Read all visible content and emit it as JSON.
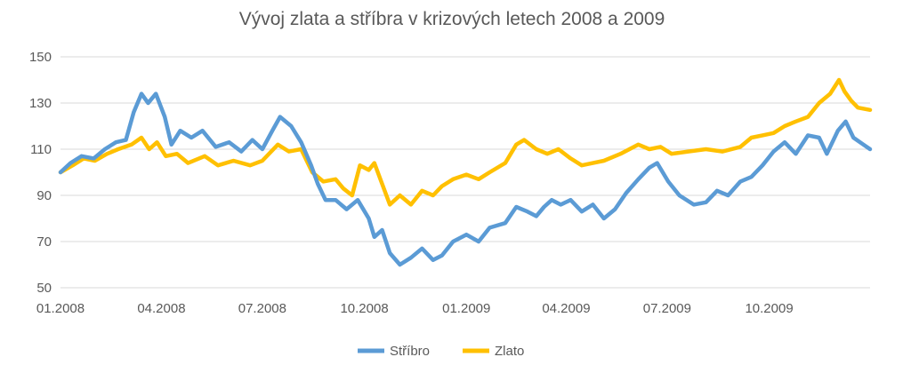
{
  "chart_data": {
    "type": "line",
    "title": "Vývoj zlata a stříbra v krizových letech 2008 a 2009",
    "xlabel": "",
    "ylabel": "",
    "ylim": [
      50,
      150
    ],
    "yticks": [
      50,
      70,
      90,
      110,
      130,
      150
    ],
    "x_range": [
      "2008-01-01",
      "2009-12-31"
    ],
    "xticks": [
      {
        "date": "2008-01-01",
        "label": "01.2008"
      },
      {
        "date": "2008-04-01",
        "label": "04.2008"
      },
      {
        "date": "2008-07-01",
        "label": "07.2008"
      },
      {
        "date": "2008-10-01",
        "label": "10.2008"
      },
      {
        "date": "2009-01-01",
        "label": "01.2009"
      },
      {
        "date": "2009-04-01",
        "label": "04.2009"
      },
      {
        "date": "2009-07-01",
        "label": "07.2009"
      },
      {
        "date": "2009-10-01",
        "label": "10.2009"
      }
    ],
    "grid": true,
    "legend_position": "bottom",
    "series": [
      {
        "name": "Stříbro",
        "color": "#5b9bd5",
        "points": [
          [
            "2008-01-01",
            100
          ],
          [
            "2008-01-10",
            104
          ],
          [
            "2008-01-20",
            107
          ],
          [
            "2008-01-31",
            106
          ],
          [
            "2008-02-10",
            110
          ],
          [
            "2008-02-20",
            113
          ],
          [
            "2008-02-29",
            114
          ],
          [
            "2008-03-07",
            126
          ],
          [
            "2008-03-14",
            134
          ],
          [
            "2008-03-20",
            130
          ],
          [
            "2008-03-27",
            134
          ],
          [
            "2008-04-04",
            124
          ],
          [
            "2008-04-10",
            112
          ],
          [
            "2008-04-18",
            118
          ],
          [
            "2008-04-28",
            115
          ],
          [
            "2008-05-08",
            118
          ],
          [
            "2008-05-20",
            111
          ],
          [
            "2008-06-01",
            113
          ],
          [
            "2008-06-12",
            109
          ],
          [
            "2008-06-22",
            114
          ],
          [
            "2008-07-01",
            110
          ],
          [
            "2008-07-10",
            118
          ],
          [
            "2008-07-17",
            124
          ],
          [
            "2008-07-27",
            120
          ],
          [
            "2008-08-05",
            113
          ],
          [
            "2008-08-14",
            103
          ],
          [
            "2008-08-20",
            95
          ],
          [
            "2008-08-27",
            88
          ],
          [
            "2008-09-05",
            88
          ],
          [
            "2008-09-15",
            84
          ],
          [
            "2008-09-25",
            88
          ],
          [
            "2008-10-05",
            80
          ],
          [
            "2008-10-10",
            72
          ],
          [
            "2008-10-17",
            75
          ],
          [
            "2008-10-24",
            65
          ],
          [
            "2008-11-02",
            60
          ],
          [
            "2008-11-12",
            63
          ],
          [
            "2008-11-22",
            67
          ],
          [
            "2008-12-02",
            62
          ],
          [
            "2008-12-10",
            64
          ],
          [
            "2008-12-20",
            70
          ],
          [
            "2009-01-01",
            73
          ],
          [
            "2009-01-12",
            70
          ],
          [
            "2009-01-22",
            76
          ],
          [
            "2009-02-05",
            78
          ],
          [
            "2009-02-15",
            85
          ],
          [
            "2009-02-25",
            83
          ],
          [
            "2009-03-05",
            81
          ],
          [
            "2009-03-12",
            85
          ],
          [
            "2009-03-19",
            88
          ],
          [
            "2009-03-27",
            86
          ],
          [
            "2009-04-05",
            88
          ],
          [
            "2009-04-15",
            83
          ],
          [
            "2009-04-25",
            86
          ],
          [
            "2009-05-05",
            80
          ],
          [
            "2009-05-15",
            84
          ],
          [
            "2009-05-25",
            91
          ],
          [
            "2009-06-05",
            97
          ],
          [
            "2009-06-15",
            102
          ],
          [
            "2009-06-22",
            104
          ],
          [
            "2009-07-02",
            96
          ],
          [
            "2009-07-12",
            90
          ],
          [
            "2009-07-25",
            86
          ],
          [
            "2009-08-05",
            87
          ],
          [
            "2009-08-15",
            92
          ],
          [
            "2009-08-25",
            90
          ],
          [
            "2009-09-05",
            96
          ],
          [
            "2009-09-15",
            98
          ],
          [
            "2009-09-25",
            103
          ],
          [
            "2009-10-05",
            109
          ],
          [
            "2009-10-15",
            113
          ],
          [
            "2009-10-25",
            108
          ],
          [
            "2009-11-05",
            116
          ],
          [
            "2009-11-15",
            115
          ],
          [
            "2009-11-22",
            108
          ],
          [
            "2009-12-02",
            118
          ],
          [
            "2009-12-09",
            122
          ],
          [
            "2009-12-16",
            115
          ],
          [
            "2009-12-25",
            112
          ],
          [
            "2009-12-31",
            110
          ]
        ]
      },
      {
        "name": "Zlato",
        "color": "#ffc000",
        "points": [
          [
            "2008-01-01",
            100
          ],
          [
            "2008-01-12",
            103
          ],
          [
            "2008-01-22",
            106
          ],
          [
            "2008-02-01",
            105
          ],
          [
            "2008-02-12",
            108
          ],
          [
            "2008-02-22",
            110
          ],
          [
            "2008-03-05",
            112
          ],
          [
            "2008-03-14",
            115
          ],
          [
            "2008-03-21",
            110
          ],
          [
            "2008-03-28",
            113
          ],
          [
            "2008-04-05",
            107
          ],
          [
            "2008-04-15",
            108
          ],
          [
            "2008-04-25",
            104
          ],
          [
            "2008-05-10",
            107
          ],
          [
            "2008-05-22",
            103
          ],
          [
            "2008-06-05",
            105
          ],
          [
            "2008-06-20",
            103
          ],
          [
            "2008-07-01",
            105
          ],
          [
            "2008-07-15",
            112
          ],
          [
            "2008-07-25",
            109
          ],
          [
            "2008-08-05",
            110
          ],
          [
            "2008-08-15",
            100
          ],
          [
            "2008-08-25",
            96
          ],
          [
            "2008-09-05",
            97
          ],
          [
            "2008-09-12",
            93
          ],
          [
            "2008-09-20",
            90
          ],
          [
            "2008-09-27",
            103
          ],
          [
            "2008-10-05",
            101
          ],
          [
            "2008-10-10",
            104
          ],
          [
            "2008-10-17",
            95
          ],
          [
            "2008-10-24",
            86
          ],
          [
            "2008-11-02",
            90
          ],
          [
            "2008-11-12",
            86
          ],
          [
            "2008-11-22",
            92
          ],
          [
            "2008-12-02",
            90
          ],
          [
            "2008-12-10",
            94
          ],
          [
            "2008-12-20",
            97
          ],
          [
            "2009-01-01",
            99
          ],
          [
            "2009-01-12",
            97
          ],
          [
            "2009-01-22",
            100
          ],
          [
            "2009-02-05",
            104
          ],
          [
            "2009-02-15",
            112
          ],
          [
            "2009-02-22",
            114
          ],
          [
            "2009-03-05",
            110
          ],
          [
            "2009-03-15",
            108
          ],
          [
            "2009-03-25",
            110
          ],
          [
            "2009-04-05",
            106
          ],
          [
            "2009-04-15",
            103
          ],
          [
            "2009-04-25",
            104
          ],
          [
            "2009-05-05",
            105
          ],
          [
            "2009-05-20",
            108
          ],
          [
            "2009-06-05",
            112
          ],
          [
            "2009-06-15",
            110
          ],
          [
            "2009-06-25",
            111
          ],
          [
            "2009-07-05",
            108
          ],
          [
            "2009-07-20",
            109
          ],
          [
            "2009-08-05",
            110
          ],
          [
            "2009-08-20",
            109
          ],
          [
            "2009-09-05",
            111
          ],
          [
            "2009-09-15",
            115
          ],
          [
            "2009-09-25",
            116
          ],
          [
            "2009-10-05",
            117
          ],
          [
            "2009-10-15",
            120
          ],
          [
            "2009-10-25",
            122
          ],
          [
            "2009-11-05",
            124
          ],
          [
            "2009-11-15",
            130
          ],
          [
            "2009-11-25",
            134
          ],
          [
            "2009-12-03",
            140
          ],
          [
            "2009-12-08",
            135
          ],
          [
            "2009-12-14",
            131
          ],
          [
            "2009-12-20",
            128
          ],
          [
            "2009-12-31",
            127
          ]
        ]
      }
    ]
  }
}
